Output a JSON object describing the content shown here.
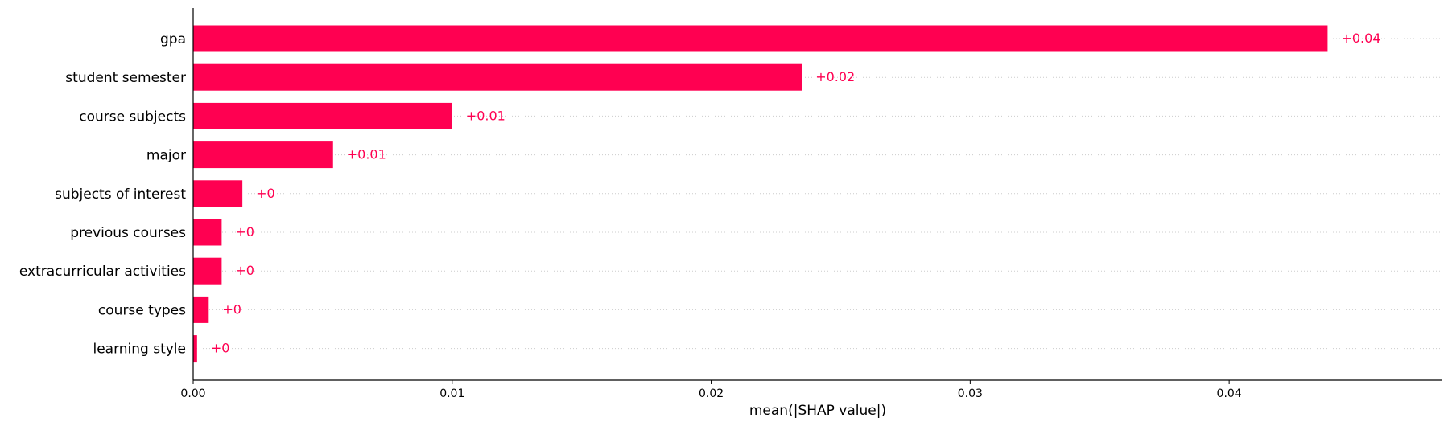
{
  "chart_data": {
    "type": "bar",
    "orientation": "horizontal",
    "title": "",
    "xlabel": "mean(|SHAP value|)",
    "ylabel": "",
    "xlim": [
      0,
      0.0482
    ],
    "xticks": [
      0.0,
      0.01,
      0.02,
      0.03,
      0.04
    ],
    "xtick_labels": [
      "0.00",
      "0.01",
      "0.02",
      "0.03",
      "0.04"
    ],
    "grid": "dotted horizontal guide lines per category",
    "bar_color": "#ff0051",
    "categories": [
      "gpa",
      "student semester",
      "course subjects",
      "major",
      "subjects of interest",
      "previous courses",
      "extracurricular activities",
      "course types",
      "learning style"
    ],
    "values": [
      0.0438,
      0.0235,
      0.01,
      0.0054,
      0.0019,
      0.0011,
      0.0011,
      0.0006,
      0.00015
    ],
    "value_labels": [
      "+0.04",
      "+0.02",
      "+0.01",
      "+0.01",
      "+0",
      "+0",
      "+0",
      "+0",
      "+0"
    ]
  }
}
